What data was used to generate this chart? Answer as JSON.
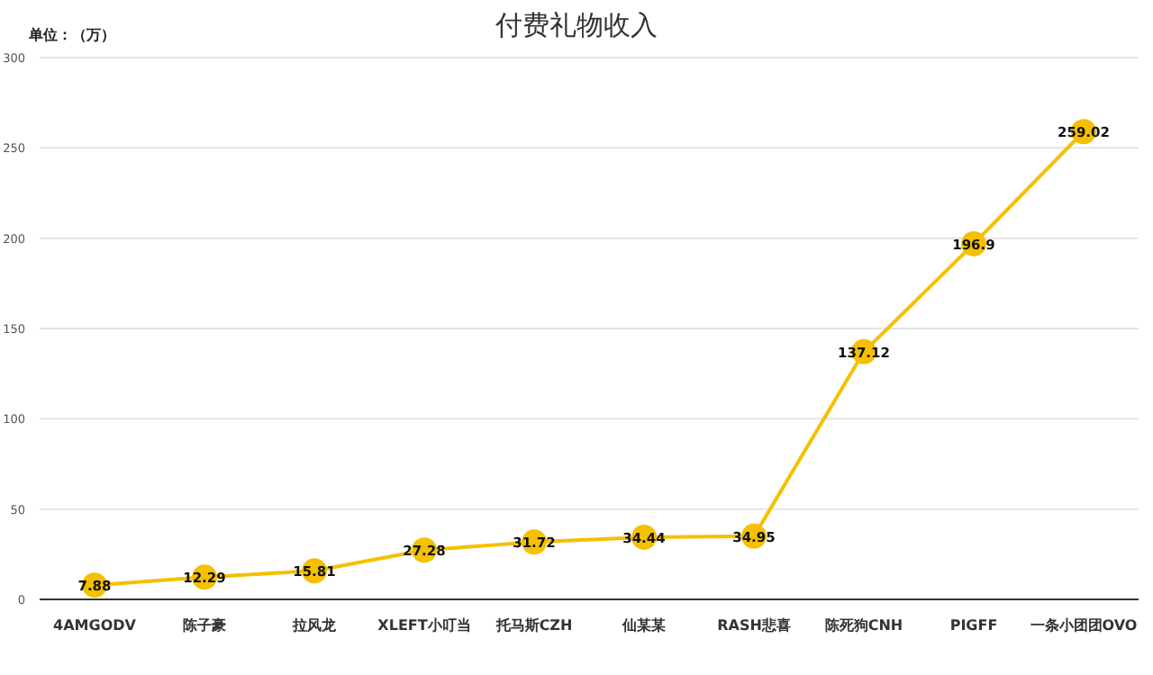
{
  "chart_data": {
    "type": "line",
    "title": "付费礼物收入",
    "annotations": [
      "单位：（万）"
    ],
    "categories": [
      "4AMGODV",
      "陈子豪",
      "拉风龙",
      "XLEFT小叮当",
      "托马斯CZH",
      "仙某某",
      "RASH悲喜",
      "陈死狗CNH",
      "PIGFF",
      "一条小团团OVO"
    ],
    "series": [
      {
        "color": "#f5c000",
        "values": [
          7.88,
          12.29,
          15.81,
          27.28,
          31.72,
          34.44,
          34.95,
          137.12,
          196.9,
          259.02
        ]
      }
    ],
    "ylim": [
      0,
      300
    ],
    "yticks": [
      0,
      50,
      100,
      150,
      200,
      250,
      300
    ],
    "grid": "y",
    "data_labels": true,
    "marker": "circle",
    "line_style": "solid"
  }
}
